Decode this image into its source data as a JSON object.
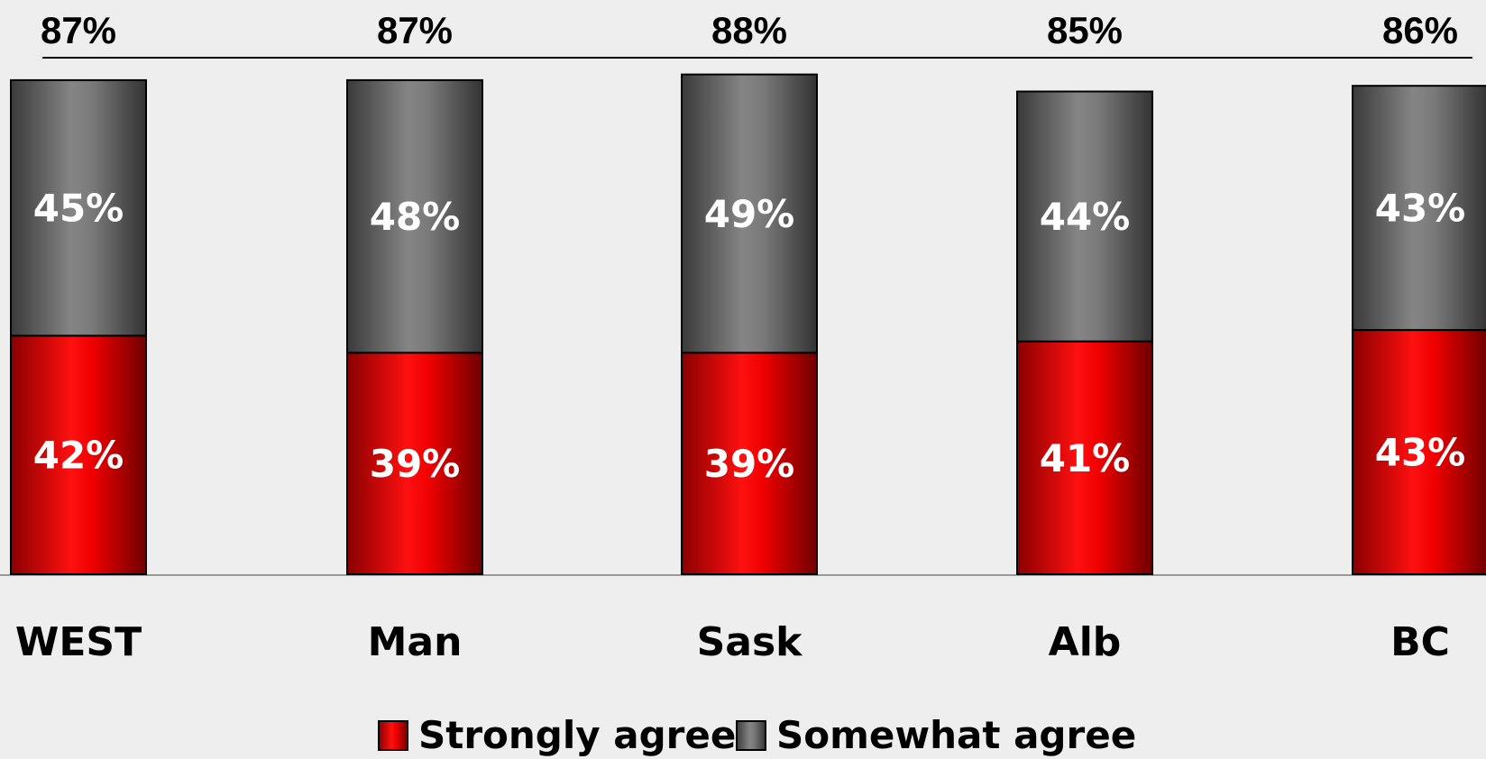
{
  "chart_data": {
    "type": "bar",
    "stacked": true,
    "categories": [
      "WEST",
      "Man",
      "Sask",
      "Alb",
      "BC"
    ],
    "series": [
      {
        "name": "Strongly agree",
        "values": [
          42,
          39,
          39,
          41,
          43
        ],
        "color": "#e8000b"
      },
      {
        "name": "Somewhat agree",
        "values": [
          45,
          48,
          49,
          44,
          43
        ],
        "color": "#6b6b6b"
      }
    ],
    "totals": [
      87,
      87,
      88,
      85,
      86
    ],
    "value_suffix": "%",
    "ylim": [
      0,
      100
    ],
    "grid": false,
    "legend_position": "bottom",
    "title": "",
    "xlabel": "",
    "ylabel": ""
  }
}
